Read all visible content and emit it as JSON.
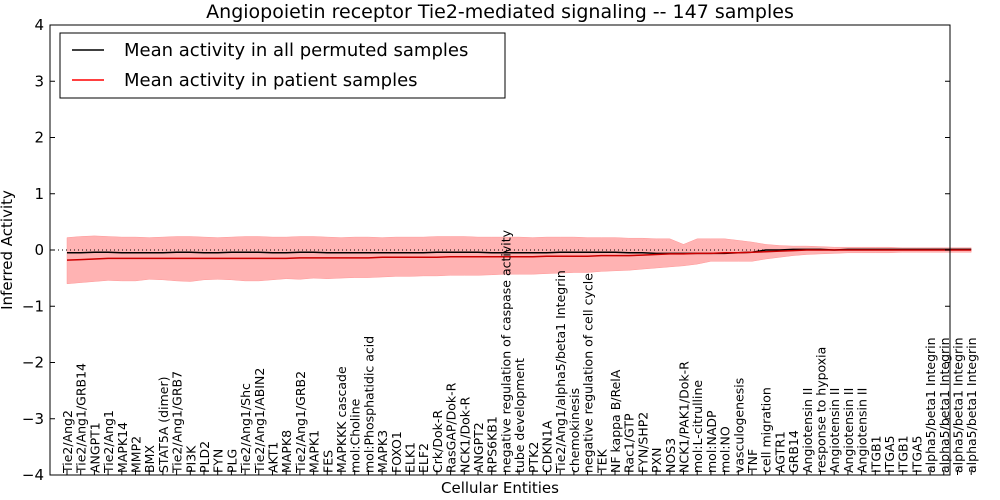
{
  "chart_data": {
    "type": "line",
    "title": "Angiopoietin receptor Tie2-mediated signaling -- 147 samples",
    "xlabel": "Cellular Entities",
    "ylabel": "Inferred Activity",
    "ylim": [
      -4,
      4
    ],
    "yticks": [
      "4",
      "3",
      "2",
      "1",
      "0",
      "−1",
      "−2",
      "−3",
      "−4"
    ],
    "legend": {
      "position": "top-left",
      "entries": [
        {
          "label": "Mean activity in all permuted samples",
          "color": "#000000"
        },
        {
          "label": "Mean activity in patient samples",
          "color": "#ff0000"
        }
      ]
    },
    "colors": {
      "permuted": "#000000",
      "patient": "#cc0000",
      "band": "#ff9999"
    },
    "categories": [
      "Tie2/Ang2",
      "Tie2/Ang1/GRB14",
      "ANGPT1",
      "Tie2/Ang1",
      "MAPK14",
      "MMP2",
      "BMX",
      "STAT5A (dimer)",
      "Tie2/Ang1/GRB7",
      "PI3K",
      "PLD2",
      "FYN",
      "PLG",
      "Tie2/Ang1/Shc",
      "Tie2/Ang1/ABIN2",
      "AKT1",
      "MAPK8",
      "Tie2/Ang1/GRB2",
      "MAPK1",
      "FES",
      "MAPKKK cascade",
      "mol:Choline",
      "mol:Phosphatidic acid",
      "MAPK3",
      "FOXO1",
      "ELK1",
      "ELF2",
      "Crk/Dok-R",
      "RasGAP/Dok-R",
      "NCK1/Dok-R",
      "ANGPT2",
      "RPS6KB1",
      "negative regulation of caspase activity",
      "tube development",
      "PTK2",
      "CDKN1A",
      "Tie2/Ang1/alpha5/beta1 Integrin",
      "chemokinesis",
      "negative regulation of cell cycle",
      "TEK",
      "NF kappa B/RelA",
      "Rac1/GTP",
      "FYN/SHP2",
      "PXN",
      "NOS3",
      "NCK1/PAK1/Dok-R",
      "mol:L-citrulline",
      "mol:NADP",
      "mol:NO",
      "vasculogenesis",
      "TNF",
      "cell migration",
      "AGTR1",
      "GRB14",
      "Angiotensin II",
      "response to hypoxia",
      "Angiotensin II",
      "Angiotensin II",
      "Angiotensin II",
      "ITGB1",
      "ITGA5",
      "ITGB1",
      "ITGA5",
      "alpha5/beta1 Integrin",
      "alpha5/beta1 Integrin",
      "alpha5/beta1 Integrin",
      "alpha5/beta1 Integrin"
    ],
    "permuted_mean": [
      -0.05,
      -0.05,
      -0.04,
      -0.04,
      -0.05,
      -0.05,
      -0.05,
      -0.05,
      -0.04,
      -0.04,
      -0.05,
      -0.05,
      -0.04,
      -0.04,
      -0.04,
      -0.05,
      -0.05,
      -0.04,
      -0.04,
      -0.05,
      -0.05,
      -0.05,
      -0.05,
      -0.05,
      -0.05,
      -0.05,
      -0.05,
      -0.04,
      -0.04,
      -0.04,
      -0.04,
      -0.05,
      -0.05,
      -0.05,
      -0.05,
      -0.05,
      -0.04,
      -0.04,
      -0.04,
      -0.04,
      -0.04,
      -0.05,
      -0.05,
      -0.06,
      -0.06,
      -0.06,
      -0.06,
      -0.06,
      -0.06,
      -0.05,
      -0.04,
      0.0,
      0.0,
      0.01,
      0.01,
      0.01,
      0.0,
      0.01,
      0.01,
      0.01,
      0.01,
      0.01,
      0.01,
      0.01,
      0.01,
      0.01,
      0.01
    ],
    "patient_mean": [
      -0.18,
      -0.17,
      -0.16,
      -0.15,
      -0.15,
      -0.15,
      -0.15,
      -0.15,
      -0.15,
      -0.15,
      -0.15,
      -0.15,
      -0.15,
      -0.15,
      -0.15,
      -0.15,
      -0.15,
      -0.14,
      -0.14,
      -0.14,
      -0.14,
      -0.14,
      -0.14,
      -0.13,
      -0.13,
      -0.13,
      -0.13,
      -0.13,
      -0.12,
      -0.12,
      -0.12,
      -0.12,
      -0.12,
      -0.12,
      -0.12,
      -0.11,
      -0.11,
      -0.11,
      -0.11,
      -0.1,
      -0.1,
      -0.1,
      -0.09,
      -0.08,
      -0.07,
      -0.07,
      -0.06,
      -0.06,
      -0.05,
      -0.05,
      -0.04,
      -0.03,
      -0.02,
      -0.01,
      0.0,
      0.0,
      0.0,
      0.0,
      0.0,
      0.0,
      0.0,
      0.0,
      0.0,
      0.0,
      0.0,
      0.0,
      0.0
    ],
    "band_upper": [
      0.22,
      0.24,
      0.25,
      0.24,
      0.23,
      0.23,
      0.22,
      0.23,
      0.24,
      0.24,
      0.23,
      0.22,
      0.23,
      0.24,
      0.24,
      0.23,
      0.23,
      0.24,
      0.24,
      0.23,
      0.22,
      0.23,
      0.23,
      0.22,
      0.23,
      0.23,
      0.23,
      0.24,
      0.24,
      0.24,
      0.23,
      0.23,
      0.23,
      0.23,
      0.22,
      0.23,
      0.23,
      0.23,
      0.22,
      0.22,
      0.22,
      0.21,
      0.21,
      0.2,
      0.2,
      0.1,
      0.2,
      0.2,
      0.2,
      0.17,
      0.14,
      0.1,
      0.08,
      0.07,
      0.07,
      0.06,
      0.05,
      0.05,
      0.05,
      0.05,
      0.05,
      0.04,
      0.04,
      0.04,
      0.04,
      0.04,
      0.04
    ],
    "band_lower": [
      -0.6,
      -0.58,
      -0.56,
      -0.54,
      -0.55,
      -0.55,
      -0.52,
      -0.53,
      -0.55,
      -0.56,
      -0.53,
      -0.52,
      -0.53,
      -0.55,
      -0.55,
      -0.53,
      -0.51,
      -0.52,
      -0.5,
      -0.51,
      -0.5,
      -0.49,
      -0.49,
      -0.48,
      -0.47,
      -0.47,
      -0.46,
      -0.46,
      -0.45,
      -0.45,
      -0.45,
      -0.44,
      -0.43,
      -0.43,
      -0.43,
      -0.42,
      -0.41,
      -0.4,
      -0.4,
      -0.38,
      -0.37,
      -0.36,
      -0.34,
      -0.32,
      -0.3,
      -0.28,
      -0.25,
      -0.2,
      -0.2,
      -0.2,
      -0.2,
      -0.16,
      -0.13,
      -0.1,
      -0.08,
      -0.07,
      -0.06,
      -0.05,
      -0.05,
      -0.05,
      -0.05,
      -0.04,
      -0.04,
      -0.04,
      -0.04,
      -0.04,
      -0.04
    ]
  }
}
